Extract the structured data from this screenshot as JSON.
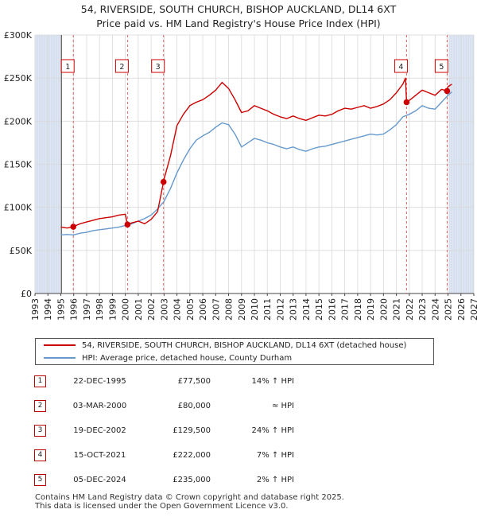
{
  "title_line1": "54, RIVERSIDE, SOUTH CHURCH, BISHOP AUCKLAND, DL14 6XT",
  "title_line2": "Price paid vs. HM Land Registry's House Price Index (HPI)",
  "legend": {
    "property": "54, RIVERSIDE, SOUTH CHURCH, BISHOP AUCKLAND, DL14 6XT (detached house)",
    "hpi": "HPI: Average price, detached house, County Durham"
  },
  "sales": [
    {
      "num": "1",
      "date": "22-DEC-1995",
      "price": "£77,500",
      "hpi": "14% ↑ HPI"
    },
    {
      "num": "2",
      "date": "03-MAR-2000",
      "price": "£80,000",
      "hpi": "≈ HPI"
    },
    {
      "num": "3",
      "date": "19-DEC-2002",
      "price": "£129,500",
      "hpi": "24% ↑ HPI"
    },
    {
      "num": "4",
      "date": "15-OCT-2021",
      "price": "£222,000",
      "hpi": "7% ↑ HPI"
    },
    {
      "num": "5",
      "date": "05-DEC-2024",
      "price": "£235,000",
      "hpi": "2% ↑ HPI"
    }
  ],
  "footer_line1": "Contains HM Land Registry data © Crown copyright and database right 2025.",
  "footer_line2": "This data is licensed under the Open Government Licence v3.0.",
  "colors": {
    "property": "#cc0000",
    "hpi": "#6699cc",
    "shade": "#dde6f2",
    "grid": "#d9d9d9",
    "box": "#cc0000",
    "vline": "#e06666"
  },
  "chart_data": {
    "type": "line",
    "xlim": [
      1993,
      2027
    ],
    "ylim": [
      0,
      300000
    ],
    "yticks": [
      0,
      50000,
      100000,
      150000,
      200000,
      250000,
      300000
    ],
    "ytick_labels": [
      "£0",
      "£50K",
      "£100K",
      "£150K",
      "£200K",
      "£250K",
      "£300K"
    ],
    "xticks": [
      1993,
      1994,
      1995,
      1996,
      1997,
      1998,
      1999,
      2000,
      2001,
      2002,
      2003,
      2004,
      2005,
      2006,
      2007,
      2008,
      2009,
      2010,
      2011,
      2012,
      2013,
      2014,
      2015,
      2016,
      2017,
      2018,
      2019,
      2020,
      2021,
      2022,
      2023,
      2024,
      2025,
      2026,
      2027
    ],
    "xtick_labels": [
      "1993",
      "1994",
      "1995",
      "1996",
      "1997",
      "1998",
      "1999",
      "2000",
      "2001",
      "2002",
      "2003",
      "2004",
      "2005",
      "2006",
      "2007",
      "2008",
      "2009",
      "2010",
      "2011",
      "2012",
      "2013",
      "2014",
      "2015",
      "2016",
      "2017",
      "2018",
      "2019",
      "2020",
      "2021",
      "2022",
      "2023",
      "2024",
      "2025",
      "2026",
      "2027"
    ],
    "shaded_ranges": [
      [
        1993,
        1995.05
      ],
      [
        2025.1,
        2027
      ]
    ],
    "markers": [
      {
        "label": "1",
        "x": 1995.97,
        "y": 77500
      },
      {
        "label": "2",
        "x": 2000.17,
        "y": 80000
      },
      {
        "label": "3",
        "x": 2002.96,
        "y": 129500
      },
      {
        "label": "4",
        "x": 2021.79,
        "y": 222000
      },
      {
        "label": "5",
        "x": 2024.93,
        "y": 235000
      }
    ],
    "series": [
      {
        "name": "54, RIVERSIDE, SOUTH CHURCH, BISHOP AUCKLAND, DL14 6XT (detached house)",
        "x": [
          1995.0,
          1995.5,
          1995.97,
          1996.5,
          1997.0,
          1997.5,
          1998.0,
          1998.5,
          1999.0,
          1999.5,
          2000.0,
          2000.17,
          2000.5,
          2001.0,
          2001.5,
          2002.0,
          2002.5,
          2002.96,
          2003.0,
          2003.5,
          2004.0,
          2004.5,
          2005.0,
          2005.5,
          2006.0,
          2006.5,
          2007.0,
          2007.5,
          2008.0,
          2008.5,
          2009.0,
          2009.5,
          2010.0,
          2010.5,
          2011.0,
          2011.5,
          2012.0,
          2012.5,
          2013.0,
          2013.5,
          2014.0,
          2014.5,
          2015.0,
          2015.5,
          2016.0,
          2016.5,
          2017.0,
          2017.5,
          2018.0,
          2018.5,
          2019.0,
          2019.5,
          2020.0,
          2020.5,
          2021.0,
          2021.5,
          2021.7,
          2021.79,
          2022.0,
          2022.5,
          2023.0,
          2023.5,
          2024.0,
          2024.5,
          2024.93,
          2025.0,
          2025.3
        ],
        "values": [
          77000,
          76000,
          77500,
          81000,
          83000,
          85000,
          87000,
          88000,
          89000,
          91000,
          92000,
          80000,
          82000,
          84000,
          81000,
          86000,
          95000,
          129500,
          133000,
          160000,
          195000,
          208000,
          218000,
          222000,
          225000,
          230000,
          236000,
          245000,
          238000,
          225000,
          210000,
          212000,
          218000,
          215000,
          212000,
          208000,
          205000,
          203000,
          206000,
          203000,
          201000,
          204000,
          207000,
          206000,
          208000,
          212000,
          215000,
          214000,
          216000,
          218000,
          215000,
          217000,
          220000,
          225000,
          233000,
          243000,
          250000,
          222000,
          224000,
          230000,
          236000,
          233000,
          230000,
          237000,
          235000,
          240000,
          243000
        ]
      },
      {
        "name": "HPI: Average price, detached house, County Durham",
        "x": [
          1995.0,
          1995.5,
          1996.0,
          1996.5,
          1997.0,
          1997.5,
          1998.0,
          1998.5,
          1999.0,
          1999.5,
          2000.0,
          2000.5,
          2001.0,
          2001.5,
          2002.0,
          2002.5,
          2003.0,
          2003.5,
          2004.0,
          2004.5,
          2005.0,
          2005.5,
          2006.0,
          2006.5,
          2007.0,
          2007.5,
          2008.0,
          2008.5,
          2009.0,
          2009.5,
          2010.0,
          2010.5,
          2011.0,
          2011.5,
          2012.0,
          2012.5,
          2013.0,
          2013.5,
          2014.0,
          2014.5,
          2015.0,
          2015.5,
          2016.0,
          2016.5,
          2017.0,
          2017.5,
          2018.0,
          2018.5,
          2019.0,
          2019.5,
          2020.0,
          2020.5,
          2021.0,
          2021.5,
          2022.0,
          2022.5,
          2023.0,
          2023.5,
          2024.0,
          2024.5,
          2025.0,
          2025.3
        ],
        "values": [
          68000,
          68500,
          68000,
          70000,
          71000,
          73000,
          74000,
          75000,
          76000,
          77000,
          79000,
          81000,
          84000,
          87000,
          91000,
          98000,
          107000,
          122000,
          140000,
          155000,
          168000,
          178000,
          183000,
          187000,
          193000,
          198000,
          196000,
          185000,
          170000,
          175000,
          180000,
          178000,
          175000,
          173000,
          170000,
          168000,
          170000,
          167000,
          165000,
          168000,
          170000,
          171000,
          173000,
          175000,
          177000,
          179000,
          181000,
          183000,
          185000,
          184000,
          185000,
          190000,
          196000,
          205000,
          208000,
          212000,
          218000,
          215000,
          214000,
          222000,
          230000,
          234000
        ]
      }
    ]
  }
}
